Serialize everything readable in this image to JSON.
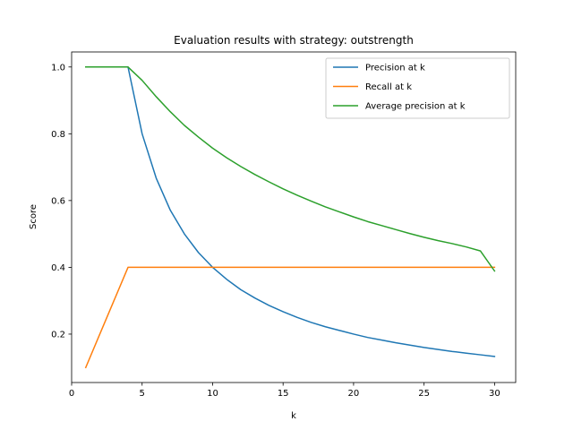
{
  "chart_data": {
    "type": "line",
    "title": "Evaluation results with strategy: outstrength",
    "xlabel": "k",
    "ylabel": "Score",
    "xlim": [
      0,
      31.5
    ],
    "ylim": [
      0.055,
      1.045
    ],
    "x_ticks": [
      0,
      5,
      10,
      15,
      20,
      25,
      30
    ],
    "y_ticks": [
      0.2,
      0.4,
      0.6,
      0.8,
      1.0
    ],
    "y_tick_labels": [
      "0.2",
      "0.4",
      "0.6",
      "0.8",
      "1.0"
    ],
    "grid": false,
    "legend_position": "top-right",
    "x": [
      1,
      2,
      3,
      4,
      5,
      6,
      7,
      8,
      9,
      10,
      11,
      12,
      13,
      14,
      15,
      16,
      17,
      18,
      19,
      20,
      21,
      22,
      23,
      24,
      25,
      26,
      27,
      28,
      29,
      30
    ],
    "series": [
      {
        "name": "Precision at k",
        "color": "#1f77b4",
        "values": [
          1.0,
          1.0,
          1.0,
          1.0,
          0.8,
          0.667,
          0.571,
          0.5,
          0.444,
          0.4,
          0.364,
          0.333,
          0.308,
          0.286,
          0.267,
          0.25,
          0.235,
          0.222,
          0.211,
          0.2,
          0.19,
          0.182,
          0.174,
          0.167,
          0.16,
          0.154,
          0.148,
          0.143,
          0.138,
          0.133
        ]
      },
      {
        "name": "Recall at k",
        "color": "#ff7f0e",
        "values": [
          0.1,
          0.2,
          0.3,
          0.4,
          0.4,
          0.4,
          0.4,
          0.4,
          0.4,
          0.4,
          0.4,
          0.4,
          0.4,
          0.4,
          0.4,
          0.4,
          0.4,
          0.4,
          0.4,
          0.4,
          0.4,
          0.4,
          0.4,
          0.4,
          0.4,
          0.4,
          0.4,
          0.4,
          0.4,
          0.4
        ]
      },
      {
        "name": "Average precision at k",
        "color": "#2ca02c",
        "values": [
          1.0,
          1.0,
          1.0,
          1.0,
          0.96,
          0.911,
          0.866,
          0.825,
          0.79,
          0.757,
          0.728,
          0.702,
          0.678,
          0.656,
          0.635,
          0.616,
          0.598,
          0.581,
          0.566,
          0.551,
          0.537,
          0.525,
          0.513,
          0.501,
          0.49,
          0.48,
          0.471,
          0.461,
          0.449,
          0.389
        ]
      }
    ]
  }
}
